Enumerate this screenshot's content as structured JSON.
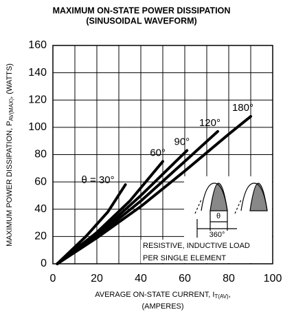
{
  "chart_data": {
    "type": "line",
    "title": "MAXIMUM ON-STATE POWER DISSIPATION",
    "subtitle": "(SINUSOIDAL WAVEFORM)",
    "y_label": {
      "main": "MAXIMUM POWER DISSIPATION, P",
      "sub": "AV(MAX)",
      "tail": ", (WATTS)"
    },
    "x_label": {
      "main": "AVERAGE ON-STATE  CURRENT, I",
      "sub": "T(AV)",
      "tail": ",",
      "line2": "(AMPERES)"
    },
    "xlim": [
      0,
      100
    ],
    "xticks": [
      0,
      20,
      40,
      60,
      80,
      100
    ],
    "x_minor_ticks": [
      10,
      30,
      50,
      70,
      90
    ],
    "ylim": [
      0,
      160
    ],
    "yticks": [
      0,
      20,
      40,
      60,
      80,
      100,
      120,
      140,
      160
    ],
    "grid": true,
    "series": [
      {
        "name": "θ = 30°",
        "color": "#000000",
        "x": [
          2,
          15,
          25,
          33
        ],
        "values": [
          0,
          20,
          38,
          58
        ]
      },
      {
        "name": "60°",
        "color": "#000000",
        "x": [
          2,
          20,
          35,
          50
        ],
        "values": [
          0,
          23,
          46,
          75
        ]
      },
      {
        "name": "90°",
        "color": "#000000",
        "x": [
          2,
          20,
          40,
          61
        ],
        "values": [
          0,
          21,
          50,
          83
        ]
      },
      {
        "name": "120°",
        "color": "#000000",
        "x": [
          2,
          20,
          40,
          60,
          75
        ],
        "values": [
          0,
          20,
          46,
          75,
          97
        ]
      },
      {
        "name": "180°",
        "color": "#000000",
        "x": [
          2,
          20,
          40,
          60,
          80,
          90
        ],
        "values": [
          0,
          19,
          42,
          68,
          95,
          108
        ]
      }
    ],
    "annotations": {
      "theta": "θ",
      "period": "360°",
      "note_line1": "RESISTIVE, INDUCTIVE LOAD",
      "note_line2": "PER SINGLE ELEMENT"
    }
  }
}
